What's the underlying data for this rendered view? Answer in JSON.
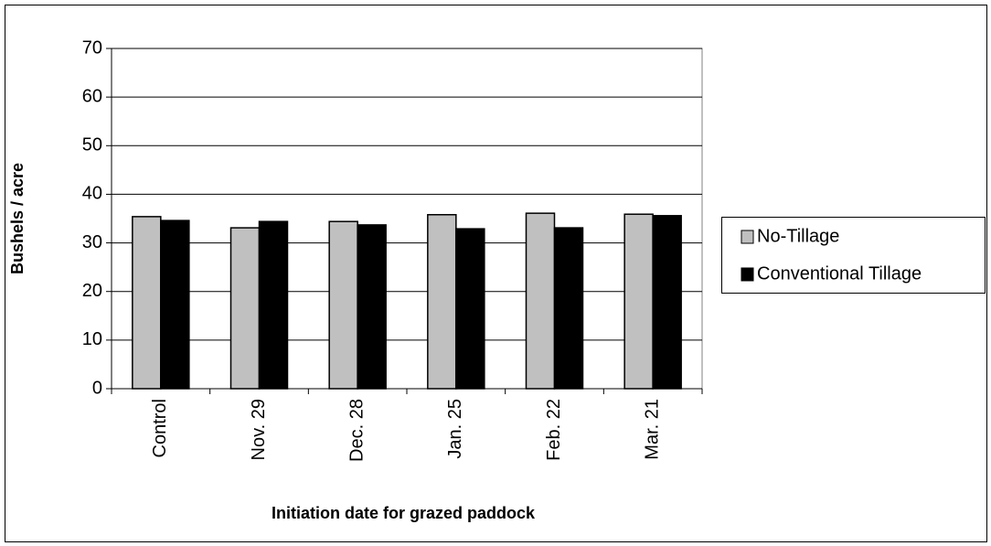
{
  "chart_data": {
    "type": "bar",
    "y_label": "Bushels / acre",
    "x_label": "Initiation date for grazed paddock",
    "categories": [
      "Control",
      "Nov. 29",
      "Dec. 28",
      "Jan. 25",
      "Feb. 22",
      "Mar. 21"
    ],
    "series": [
      {
        "name": "No-Tillage",
        "color": "#c0c0c0",
        "values": [
          35.4,
          33.1,
          34.4,
          35.8,
          36.1,
          35.9
        ]
      },
      {
        "name": "Conventional Tillage",
        "color": "#000000",
        "values": [
          34.6,
          34.4,
          33.7,
          32.9,
          33.1,
          35.6
        ]
      }
    ],
    "ylim": [
      0,
      70
    ],
    "yticks": [
      0,
      10,
      20,
      30,
      40,
      50,
      60,
      70
    ],
    "grid": true,
    "legend": "right"
  }
}
